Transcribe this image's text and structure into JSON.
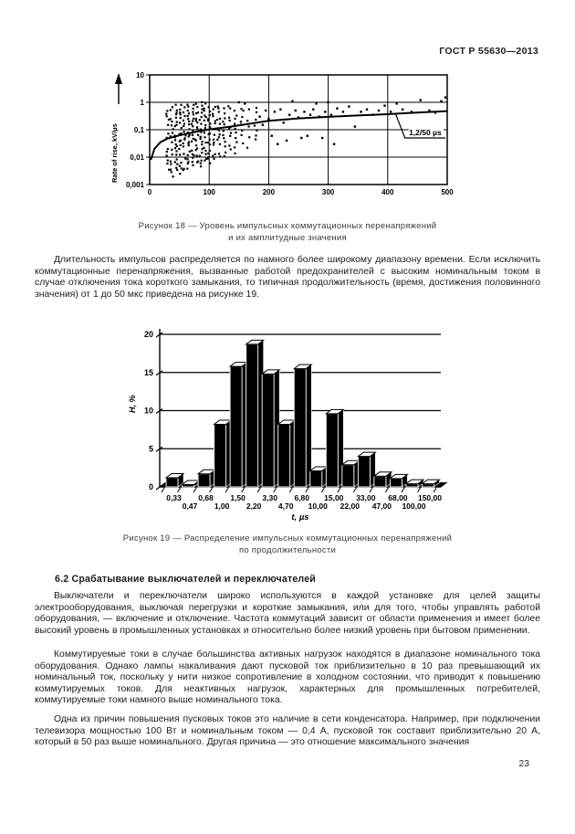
{
  "page": {
    "header_title": "ГОСТ Р 55630—2013",
    "page_number": "23"
  },
  "figure18": {
    "caption_lines": [
      "Рисунок 18 — Уровень импульсных коммутационных перенапряжений",
      "и их амплитудные значения"
    ]
  },
  "figure19": {
    "caption_lines": [
      "Рисунок 19 — Распределение импульсных коммутационных перенапряжений",
      "по продолжительности"
    ]
  },
  "sections": {
    "paragraph_1": "Длительность импульсов распределяется по намного более широкому диапазону времени. Если исключить коммутационные перенапряжения, вызванные работой предохранителей с высоким номинальным током в случае отключения тока короткого замыкания, то типичная продолжительность (время, достижения половинного значения) от 1 до 50 мкс приведена на рисунке 19.",
    "heading_6_2": "6.2 Срабатывание выключателей и переключателей",
    "paragraph_2": "Выключатели и переключатели широко используются в каждой установке для целей защиты электрооборудования, выключая перегрузки и короткие замыкания, или для того, чтобы управлять работой оборудования, — включение и отключение. Частота коммутаций зависит от области применения и имеет более высокий уровень в промышленных установках и относительно более низкий уровень при бытовом применении.",
    "paragraph_3": "Коммутируемые токи в случае большинства активных нагрузок находятся в диапазоне номинального тока оборудования. Однако лампы накаливания дают пусковой ток приблизительно в 10 раз превышающий их номинальный ток, поскольку у нити низкое сопротивление в холодном состоянии, что приводит к повышению коммутируемых токов. Для неактивных нагрузок, характерных для промышленных потребителей, коммутируемые токи намного выше  номинального тока.",
    "paragraph_4": "Одна из причин повышения пусковых токов это наличие в сети конденсатора. Например, при подключении телевизора мощностью 100 Вт и номинальным током — 0,4 А, пусковой ток составит приблизительно 20 А, который в 50 раз выше номинального. Другая причина — это отношение максимального значения"
  },
  "chart_data": [
    {
      "id": "fig18",
      "type": "scatter",
      "title": "Рисунок 18 — Уровень импульсных коммутационных перенапряжений и их амплитудные значения",
      "xlabel": "",
      "ylabel": "Rate of rise, kV/µs",
      "xlim": [
        0,
        500
      ],
      "ylog_lim": [
        0.001,
        10
      ],
      "x_ticks": [
        "0",
        "100",
        "200",
        "300",
        "400",
        "500"
      ],
      "y_ticks": [
        "0,001",
        "0,01",
        "0,1",
        "1",
        "10"
      ],
      "y_tick_values": [
        0.001,
        0.01,
        0.1,
        1,
        10
      ],
      "grid": true,
      "annotation": {
        "label": "1,2/50 µs",
        "leader_line": [
          [
            413,
            0.385
          ],
          [
            429,
            0.05
          ],
          [
            497,
            0.05
          ]
        ]
      },
      "curve_series": {
        "name": "1,2/50 µs reference curve",
        "points": [
          [
            2,
            0.008
          ],
          [
            8,
            0.02
          ],
          [
            18,
            0.035
          ],
          [
            30,
            0.048
          ],
          [
            50,
            0.062
          ],
          [
            75,
            0.082
          ],
          [
            100,
            0.103
          ],
          [
            130,
            0.125
          ],
          [
            160,
            0.155
          ],
          [
            200,
            0.21
          ],
          [
            250,
            0.26
          ],
          [
            300,
            0.295
          ],
          [
            350,
            0.33
          ],
          [
            400,
            0.37
          ],
          [
            430,
            0.4
          ],
          [
            500,
            0.48
          ]
        ]
      },
      "dense_columns": [
        {
          "x": 30,
          "lo": 0.004,
          "hi": 0.55,
          "n": 16
        },
        {
          "x": 37,
          "lo": 0.002,
          "hi": 0.65,
          "n": 20
        },
        {
          "x": 44,
          "lo": 0.003,
          "hi": 0.75,
          "n": 22
        },
        {
          "x": 51,
          "lo": 0.002,
          "hi": 0.8,
          "n": 22
        },
        {
          "x": 58,
          "lo": 0.003,
          "hi": 0.7,
          "n": 20
        },
        {
          "x": 65,
          "lo": 0.004,
          "hi": 0.85,
          "n": 22
        },
        {
          "x": 72,
          "lo": 0.005,
          "hi": 0.75,
          "n": 20
        },
        {
          "x": 79,
          "lo": 0.006,
          "hi": 0.8,
          "n": 20
        },
        {
          "x": 86,
          "lo": 0.005,
          "hi": 0.9,
          "n": 20
        },
        {
          "x": 93,
          "lo": 0.007,
          "hi": 0.8,
          "n": 18
        },
        {
          "x": 100,
          "lo": 0.006,
          "hi": 0.85,
          "n": 18
        },
        {
          "x": 108,
          "lo": 0.008,
          "hi": 0.7,
          "n": 16
        },
        {
          "x": 116,
          "lo": 0.01,
          "hi": 0.8,
          "n": 14
        },
        {
          "x": 125,
          "lo": 0.012,
          "hi": 0.6,
          "n": 12
        },
        {
          "x": 134,
          "lo": 0.02,
          "hi": 0.75,
          "n": 12
        },
        {
          "x": 144,
          "lo": 0.015,
          "hi": 0.55,
          "n": 10
        },
        {
          "x": 155,
          "lo": 0.03,
          "hi": 0.65,
          "n": 9
        },
        {
          "x": 166,
          "lo": 0.02,
          "hi": 0.5,
          "n": 8
        },
        {
          "x": 178,
          "lo": 0.04,
          "hi": 0.6,
          "n": 7
        }
      ],
      "points": [
        [
          150,
          1.0
        ],
        [
          160,
          0.9
        ],
        [
          185,
          0.3
        ],
        [
          190,
          0.15
        ],
        [
          195,
          0.5
        ],
        [
          200,
          0.25
        ],
        [
          205,
          0.06
        ],
        [
          210,
          0.45
        ],
        [
          215,
          0.03
        ],
        [
          220,
          0.55
        ],
        [
          225,
          0.18
        ],
        [
          230,
          0.04
        ],
        [
          235,
          0.35
        ],
        [
          240,
          1.1
        ],
        [
          245,
          0.5
        ],
        [
          250,
          0.28
        ],
        [
          255,
          0.05
        ],
        [
          260,
          0.45
        ],
        [
          265,
          0.06
        ],
        [
          270,
          0.35
        ],
        [
          275,
          0.55
        ],
        [
          280,
          0.9
        ],
        [
          285,
          0.3
        ],
        [
          290,
          0.05
        ],
        [
          295,
          0.45
        ],
        [
          300,
          1.0
        ],
        [
          305,
          0.35
        ],
        [
          310,
          0.03
        ],
        [
          315,
          0.6
        ],
        [
          325,
          0.45
        ],
        [
          335,
          0.7
        ],
        [
          345,
          0.13
        ],
        [
          355,
          0.45
        ],
        [
          365,
          0.55
        ],
        [
          375,
          0.35
        ],
        [
          385,
          0.5
        ],
        [
          395,
          0.75
        ],
        [
          405,
          0.45
        ],
        [
          415,
          0.9
        ],
        [
          425,
          0.55
        ],
        [
          440,
          0.45
        ],
        [
          455,
          1.2
        ],
        [
          470,
          0.5
        ],
        [
          480,
          0.42
        ],
        [
          490,
          1.1
        ],
        [
          497,
          1.5
        ]
      ]
    },
    {
      "id": "fig19",
      "type": "bar",
      "title": "Рисунок 19 — Распределение импульсных коммутационных перенапряжений по продолжительности",
      "xlabel": "t, µs",
      "ylabel": "H, %",
      "ylim": [
        0,
        20
      ],
      "y_ticks": [
        "0",
        "5",
        "10",
        "15",
        "20"
      ],
      "y_tick_values": [
        0,
        5,
        10,
        15,
        20
      ],
      "grid": true,
      "categories": [
        "0,33",
        "0,47",
        "0,68",
        "1,00",
        "1,50",
        "2,20",
        "3,30",
        "4,70",
        "6,80",
        "10,00",
        "15,00",
        "22,00",
        "33,00",
        "47,00",
        "68,00",
        "100,00",
        "150,00"
      ],
      "values": [
        1.2,
        0.3,
        1.7,
        8.2,
        15.8,
        18.7,
        14.8,
        8.2,
        15.5,
        2.1,
        9.6,
        2.9,
        4.0,
        1.4,
        1.1,
        0.4,
        0.4
      ]
    }
  ]
}
